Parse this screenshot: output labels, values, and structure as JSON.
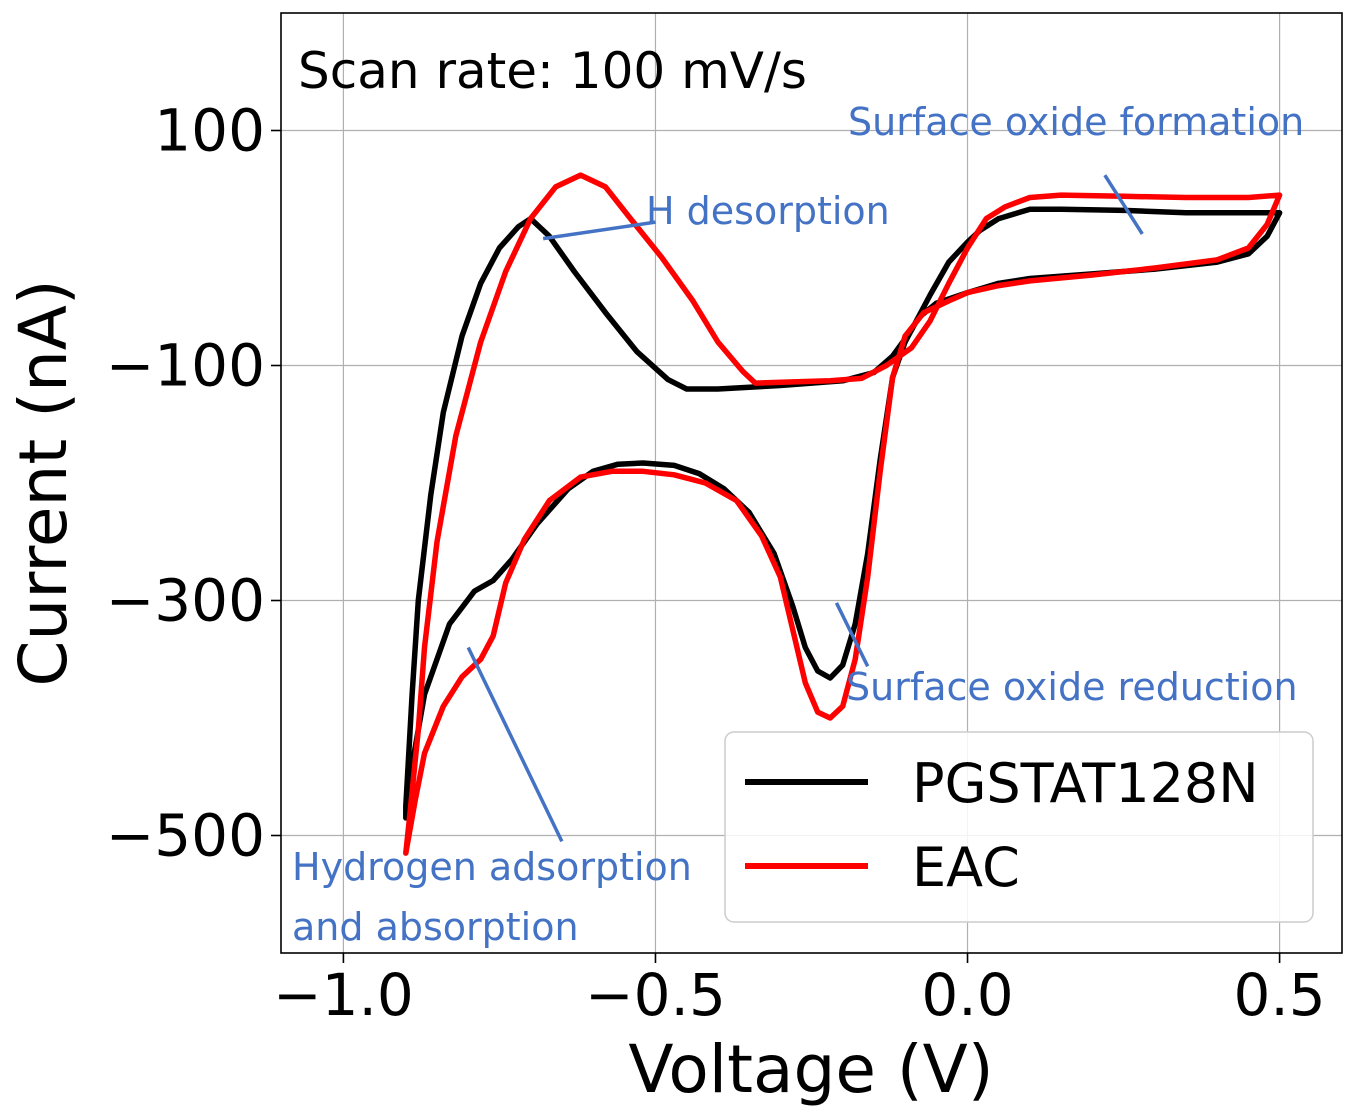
{
  "chart_data": {
    "type": "line",
    "xlabel": "Voltage (V)",
    "ylabel": "Current (nA)",
    "xlim": [
      -1.1,
      0.6
    ],
    "ylim": [
      -600,
      200
    ],
    "xticks": [
      -1.0,
      -0.5,
      0.0,
      0.5
    ],
    "xtick_labels": [
      "−1.0",
      "−0.5",
      "0.0",
      "0.5"
    ],
    "yticks": [
      100,
      -100,
      -300,
      -500
    ],
    "ytick_labels": [
      "100",
      "−100",
      "−300",
      "−500"
    ],
    "grid": true,
    "legend_position": "lower-right",
    "scan_rate_text": "Scan rate: 100 mV/s",
    "series": [
      {
        "name": "PGSTAT128N",
        "color": "#000000",
        "points": [
          [
            -0.9,
            -485
          ],
          [
            -0.89,
            -440
          ],
          [
            -0.87,
            -380
          ],
          [
            -0.83,
            -320
          ],
          [
            -0.79,
            -292
          ],
          [
            -0.76,
            -283
          ],
          [
            -0.73,
            -265
          ],
          [
            -0.69,
            -235
          ],
          [
            -0.64,
            -205
          ],
          [
            -0.6,
            -190
          ],
          [
            -0.56,
            -184
          ],
          [
            -0.52,
            -183
          ],
          [
            -0.47,
            -185
          ],
          [
            -0.43,
            -192
          ],
          [
            -0.39,
            -205
          ],
          [
            -0.35,
            -225
          ],
          [
            -0.31,
            -260
          ],
          [
            -0.28,
            -305
          ],
          [
            -0.26,
            -340
          ],
          [
            -0.24,
            -360
          ],
          [
            -0.22,
            -366
          ],
          [
            -0.2,
            -355
          ],
          [
            -0.18,
            -320
          ],
          [
            -0.16,
            -260
          ],
          [
            -0.14,
            -180
          ],
          [
            -0.12,
            -110
          ],
          [
            -0.1,
            -80
          ],
          [
            -0.08,
            -60
          ],
          [
            -0.05,
            -47
          ],
          [
            0.0,
            -38
          ],
          [
            0.05,
            -30
          ],
          [
            0.1,
            -26
          ],
          [
            0.2,
            -22
          ],
          [
            0.3,
            -18
          ],
          [
            0.4,
            -12
          ],
          [
            0.45,
            -5
          ],
          [
            0.48,
            10
          ],
          [
            0.5,
            30
          ],
          [
            0.45,
            30
          ],
          [
            0.35,
            30
          ],
          [
            0.25,
            32
          ],
          [
            0.15,
            33
          ],
          [
            0.1,
            33
          ],
          [
            0.05,
            25
          ],
          [
            0.02,
            15
          ],
          [
            0.0,
            5
          ],
          [
            -0.03,
            -12
          ],
          [
            -0.06,
            -40
          ],
          [
            -0.09,
            -70
          ],
          [
            -0.12,
            -92
          ],
          [
            -0.15,
            -106
          ],
          [
            -0.2,
            -113
          ],
          [
            -0.3,
            -117
          ],
          [
            -0.4,
            -120
          ],
          [
            -0.45,
            -120
          ],
          [
            -0.48,
            -112
          ],
          [
            -0.53,
            -88
          ],
          [
            -0.58,
            -55
          ],
          [
            -0.63,
            -20
          ],
          [
            -0.67,
            10
          ],
          [
            -0.7,
            25
          ],
          [
            -0.72,
            18
          ],
          [
            -0.75,
            0
          ],
          [
            -0.78,
            -30
          ],
          [
            -0.81,
            -75
          ],
          [
            -0.84,
            -140
          ],
          [
            -0.86,
            -210
          ],
          [
            -0.88,
            -300
          ],
          [
            -0.89,
            -380
          ],
          [
            -0.9,
            -475
          ]
        ]
      },
      {
        "name": "EAC",
        "color": "#ff0000",
        "points": [
          [
            -0.9,
            -515
          ],
          [
            -0.885,
            -470
          ],
          [
            -0.87,
            -430
          ],
          [
            -0.84,
            -390
          ],
          [
            -0.81,
            -365
          ],
          [
            -0.78,
            -350
          ],
          [
            -0.76,
            -330
          ],
          [
            -0.74,
            -285
          ],
          [
            -0.71,
            -248
          ],
          [
            -0.67,
            -215
          ],
          [
            -0.62,
            -195
          ],
          [
            -0.57,
            -190
          ],
          [
            -0.52,
            -190
          ],
          [
            -0.47,
            -193
          ],
          [
            -0.42,
            -200
          ],
          [
            -0.37,
            -215
          ],
          [
            -0.33,
            -245
          ],
          [
            -0.3,
            -280
          ],
          [
            -0.28,
            -325
          ],
          [
            -0.26,
            -370
          ],
          [
            -0.24,
            -395
          ],
          [
            -0.22,
            -400
          ],
          [
            -0.2,
            -390
          ],
          [
            -0.18,
            -350
          ],
          [
            -0.16,
            -280
          ],
          [
            -0.14,
            -190
          ],
          [
            -0.12,
            -110
          ],
          [
            -0.1,
            -75
          ],
          [
            -0.07,
            -55
          ],
          [
            -0.03,
            -45
          ],
          [
            0.0,
            -38
          ],
          [
            0.05,
            -32
          ],
          [
            0.1,
            -28
          ],
          [
            0.2,
            -23
          ],
          [
            0.3,
            -17
          ],
          [
            0.4,
            -10
          ],
          [
            0.45,
            0
          ],
          [
            0.48,
            20
          ],
          [
            0.5,
            45
          ],
          [
            0.45,
            43
          ],
          [
            0.35,
            43
          ],
          [
            0.25,
            44
          ],
          [
            0.15,
            45
          ],
          [
            0.1,
            43
          ],
          [
            0.06,
            35
          ],
          [
            0.03,
            25
          ],
          [
            0.0,
            0
          ],
          [
            -0.03,
            -30
          ],
          [
            -0.06,
            -62
          ],
          [
            -0.09,
            -85
          ],
          [
            -0.13,
            -100
          ],
          [
            -0.17,
            -111
          ],
          [
            -0.22,
            -113
          ],
          [
            -0.28,
            -114
          ],
          [
            -0.34,
            -115
          ],
          [
            -0.36,
            -105
          ],
          [
            -0.4,
            -80
          ],
          [
            -0.44,
            -45
          ],
          [
            -0.49,
            -8
          ],
          [
            -0.54,
            25
          ],
          [
            -0.58,
            52
          ],
          [
            -0.62,
            62
          ],
          [
            -0.66,
            52
          ],
          [
            -0.7,
            25
          ],
          [
            -0.74,
            -20
          ],
          [
            -0.78,
            -80
          ],
          [
            -0.82,
            -160
          ],
          [
            -0.85,
            -250
          ],
          [
            -0.87,
            -340
          ],
          [
            -0.88,
            -410
          ],
          [
            -0.895,
            -490
          ]
        ]
      }
    ],
    "annotations": [
      {
        "text": "H desorption",
        "xy": [
          -0.68,
          8
        ],
        "xytext": [
          -0.5,
          22
        ]
      },
      {
        "text": "Surface oxide formation",
        "xy": [
          0.28,
          12
        ],
        "xytext": [
          0.22,
          62
        ]
      },
      {
        "text": "Surface oxide reduction",
        "xy": [
          -0.21,
          -302
        ],
        "xytext": [
          -0.16,
          -356
        ]
      },
      {
        "text": "Hydrogen adsorption",
        "text2": "and absorption",
        "xy": [
          -0.8,
          -340
        ],
        "xytext": [
          -0.65,
          -505
        ]
      }
    ]
  }
}
